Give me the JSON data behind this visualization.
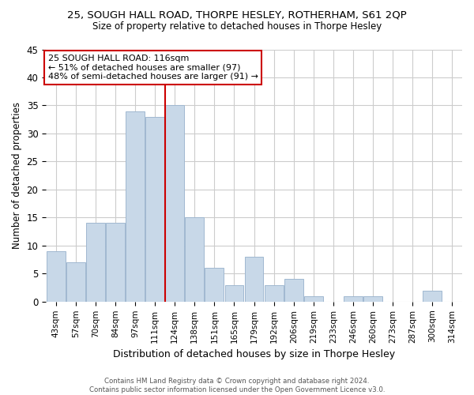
{
  "title1": "25, SOUGH HALL ROAD, THORPE HESLEY, ROTHERHAM, S61 2QP",
  "title2": "Size of property relative to detached houses in Thorpe Hesley",
  "xlabel": "Distribution of detached houses by size in Thorpe Hesley",
  "ylabel": "Number of detached properties",
  "bin_labels": [
    "43sqm",
    "57sqm",
    "70sqm",
    "84sqm",
    "97sqm",
    "111sqm",
    "124sqm",
    "138sqm",
    "151sqm",
    "165sqm",
    "179sqm",
    "192sqm",
    "206sqm",
    "219sqm",
    "233sqm",
    "246sqm",
    "260sqm",
    "273sqm",
    "287sqm",
    "300sqm",
    "314sqm"
  ],
  "bar_heights": [
    9,
    7,
    14,
    14,
    34,
    33,
    35,
    15,
    6,
    3,
    8,
    3,
    4,
    1,
    0,
    1,
    1,
    0,
    0,
    2,
    0
  ],
  "bar_color": "#c8d8e8",
  "bar_edge_color": "#a0b8d0",
  "vline_x": 6.0,
  "vline_color": "#cc0000",
  "annotation_title": "25 SOUGH HALL ROAD: 116sqm",
  "annotation_line1": "← 51% of detached houses are smaller (97)",
  "annotation_line2": "48% of semi-detached houses are larger (91) →",
  "annotation_box_color": "#ffffff",
  "annotation_box_edge": "#cc0000",
  "ylim": [
    0,
    45
  ],
  "yticks": [
    0,
    5,
    10,
    15,
    20,
    25,
    30,
    35,
    40,
    45
  ],
  "footer1": "Contains HM Land Registry data © Crown copyright and database right 2024.",
  "footer2": "Contains public sector information licensed under the Open Government Licence v3.0.",
  "bg_color": "#ffffff",
  "grid_color": "#cccccc"
}
